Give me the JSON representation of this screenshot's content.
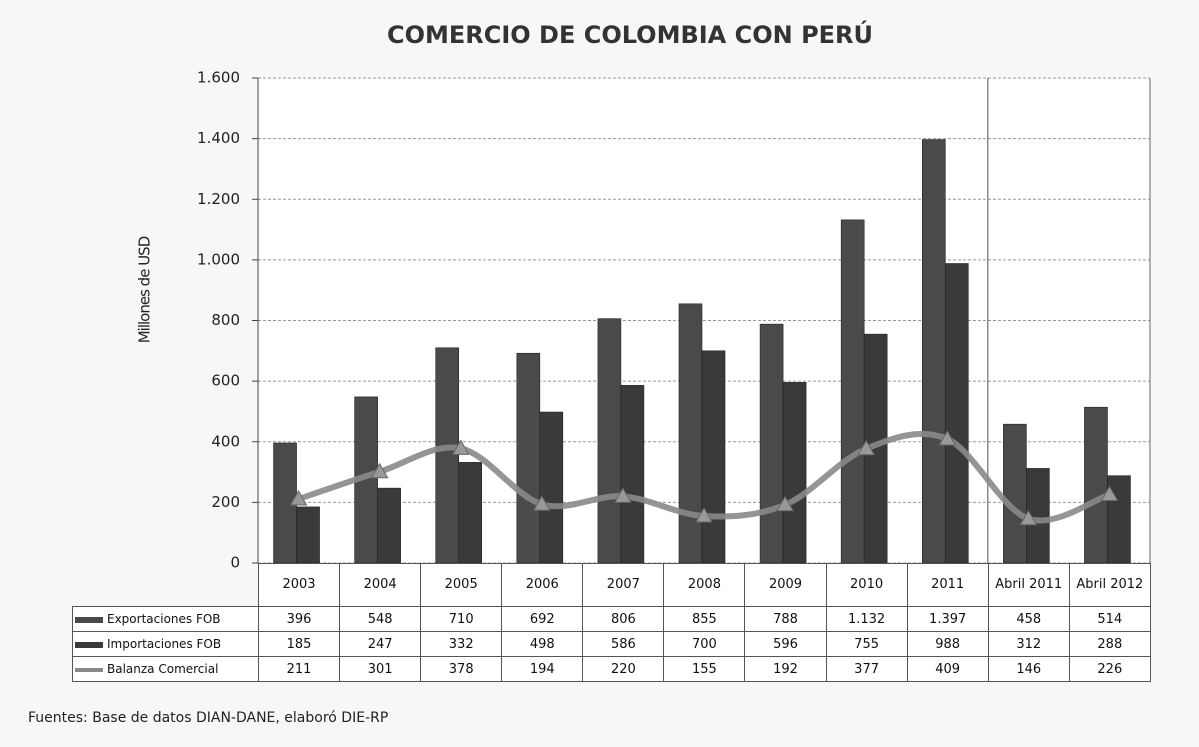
{
  "chart_data": {
    "type": "bar",
    "title": "COMERCIO DE COLOMBIA CON PERÚ",
    "y_label": "Millones de USD",
    "categories": [
      "2003",
      "2004",
      "2005",
      "2006",
      "2007",
      "2008",
      "2009",
      "2010",
      "2011",
      "Abril 2011",
      "Abril 2012"
    ],
    "series": [
      {
        "name": "Exportaciones FOB",
        "color": "#4a4a4a",
        "values": [
          396,
          548,
          710,
          692,
          806,
          855,
          788,
          1132,
          1397,
          458,
          514
        ],
        "value_labels": [
          "396",
          "548",
          "710",
          "692",
          "806",
          "855",
          "788",
          "1.132",
          "1.397",
          "458",
          "514"
        ]
      },
      {
        "name": "Importaciones FOB",
        "color": "#3a3a3a",
        "values": [
          185,
          247,
          332,
          498,
          586,
          700,
          596,
          755,
          988,
          312,
          288
        ]
      },
      {
        "name": "Balanza Comercial",
        "type": "line",
        "color": "#8a8a8a",
        "values": [
          211,
          301,
          378,
          194,
          220,
          155,
          192,
          377,
          409,
          146,
          226
        ]
      }
    ],
    "ylim": [
      0,
      1600
    ],
    "yticks": [
      0,
      200,
      400,
      600,
      800,
      {
        "value": 1000,
        "label": "1.000"
      },
      {
        "value": 1200,
        "label": "1.200"
      },
      {
        "value": 1400,
        "label": "1.400"
      },
      {
        "value": 1600,
        "label": "1.600"
      }
    ],
    "grid": true,
    "source": "Fuentes: Base de datos DIAN-DANE, elaboró DIE-RP"
  }
}
